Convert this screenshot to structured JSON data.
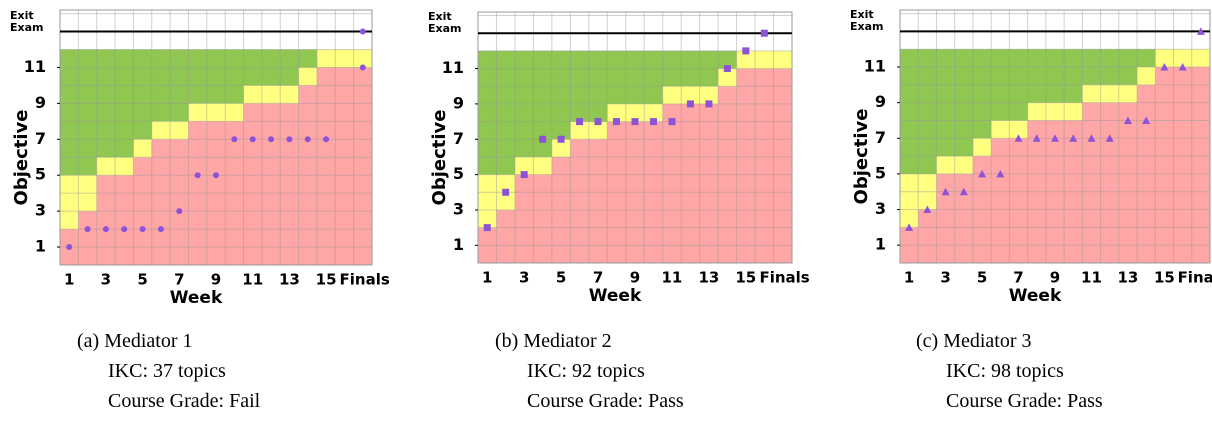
{
  "chart_data": [
    {
      "type": "scatter",
      "marker": "circle",
      "x_label": "Week",
      "y_label": "Objective",
      "categories": [
        "1",
        null,
        "3",
        null,
        "5",
        null,
        "7",
        null,
        "9",
        null,
        "11",
        null,
        "13",
        null,
        "15",
        null,
        "Finals"
      ],
      "ylim": [
        0,
        14.2
      ],
      "yticks": [
        1,
        3,
        5,
        7,
        9,
        11,
        {
          "value": 13,
          "label": "Exit Exam"
        }
      ],
      "band_top": 12,
      "band_lower": [
        2,
        3,
        5,
        5,
        6,
        7,
        7,
        8,
        8,
        8,
        9,
        9,
        9,
        10,
        11,
        11,
        11
      ],
      "band_upper": [
        5,
        5,
        6,
        6,
        7,
        8,
        8,
        9,
        9,
        9,
        10,
        10,
        10,
        11,
        12,
        12,
        12
      ],
      "colors": {
        "low": "#ffa6a6",
        "mid": "#ffff80",
        "high": "#8fc750"
      },
      "series": [
        {
          "color": "#8e52d6",
          "values": [
            1,
            2,
            2,
            2,
            2,
            2,
            3,
            5,
            5,
            7,
            7,
            7,
            7,
            7,
            7,
            null,
            11
          ]
        },
        {
          "color": "#8e52d6",
          "values": [
            null,
            null,
            null,
            null,
            null,
            null,
            null,
            null,
            null,
            null,
            null,
            null,
            null,
            null,
            null,
            null,
            13
          ]
        }
      ],
      "caption": {
        "label": "(a) Mediator 1",
        "ikc": "IKC: 37 topics",
        "grade": "Course Grade: Fail"
      }
    },
    {
      "type": "scatter",
      "marker": "square",
      "x_label": "Week",
      "y_label": "Objective",
      "categories": [
        "1",
        null,
        "3",
        null,
        "5",
        null,
        "7",
        null,
        "9",
        null,
        "11",
        null,
        "13",
        null,
        "15",
        null,
        "Finals"
      ],
      "ylim": [
        0,
        14.2
      ],
      "yticks": [
        1,
        3,
        5,
        7,
        9,
        11,
        {
          "value": 13,
          "label": "Exit Exam"
        }
      ],
      "band_top": 12,
      "band_lower": [
        2,
        3,
        5,
        5,
        6,
        7,
        7,
        8,
        8,
        8,
        9,
        9,
        9,
        10,
        11,
        11,
        11
      ],
      "band_upper": [
        5,
        5,
        6,
        6,
        7,
        8,
        8,
        9,
        9,
        9,
        10,
        10,
        10,
        11,
        12,
        12,
        12
      ],
      "colors": {
        "low": "#ffa6a6",
        "mid": "#ffff80",
        "high": "#8fc750"
      },
      "series": [
        {
          "color": "#8e52d6",
          "values": [
            2,
            4,
            5,
            7,
            7,
            8,
            8,
            8,
            8,
            8,
            8,
            9,
            9,
            11,
            12,
            null,
            null
          ]
        },
        {
          "color": "#8e52d6",
          "values": [
            null,
            null,
            null,
            null,
            null,
            null,
            null,
            null,
            null,
            null,
            null,
            null,
            null,
            null,
            null,
            13,
            null
          ]
        }
      ],
      "caption": {
        "label": "(b) Mediator 2",
        "ikc": "IKC: 92 topics",
        "grade": "Course Grade: Pass"
      }
    },
    {
      "type": "scatter",
      "marker": "triangle",
      "x_label": "Week",
      "y_label": "Objective",
      "categories": [
        "1",
        null,
        "3",
        null,
        "5",
        null,
        "7",
        null,
        "9",
        null,
        "11",
        null,
        "13",
        null,
        "15",
        null,
        "Finals"
      ],
      "ylim": [
        0,
        14.2
      ],
      "yticks": [
        1,
        3,
        5,
        7,
        9,
        11,
        {
          "value": 13,
          "label": "Exit Exam"
        }
      ],
      "band_top": 12,
      "band_lower": [
        2,
        3,
        5,
        5,
        6,
        7,
        7,
        8,
        8,
        8,
        9,
        9,
        9,
        10,
        11,
        11,
        11
      ],
      "band_upper": [
        5,
        5,
        6,
        6,
        7,
        8,
        8,
        9,
        9,
        9,
        10,
        10,
        10,
        11,
        12,
        12,
        12
      ],
      "colors": {
        "low": "#ffa6a6",
        "mid": "#ffff80",
        "high": "#8fc750"
      },
      "series": [
        {
          "color": "#8e52d6",
          "values": [
            2,
            3,
            4,
            4,
            5,
            5,
            7,
            7,
            7,
            7,
            7,
            7,
            8,
            8,
            11,
            11,
            null
          ]
        },
        {
          "color": "#8e52d6",
          "values": [
            null,
            null,
            null,
            null,
            null,
            null,
            null,
            null,
            null,
            null,
            null,
            null,
            null,
            null,
            null,
            null,
            13
          ]
        }
      ],
      "caption": {
        "label": "(c) Mediator 3",
        "ikc": "IKC: 98 topics",
        "grade": "Course Grade: Pass"
      }
    }
  ]
}
